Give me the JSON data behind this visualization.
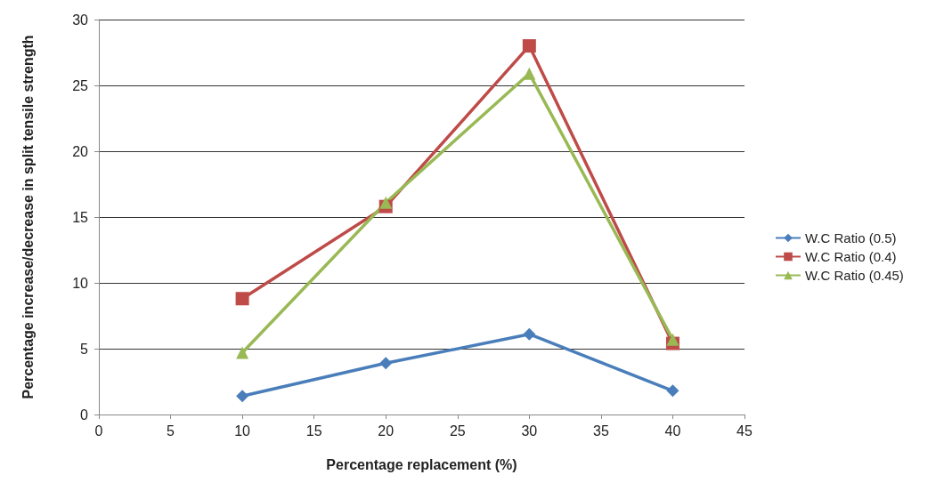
{
  "chart_data": {
    "type": "line",
    "xlabel": "Percentage replacement (%)",
    "ylabel": "Percentage increase/decrease in split tensile strength",
    "x": [
      10,
      20,
      30,
      40
    ],
    "series": [
      {
        "name": "W.C Ratio (0.5)",
        "color": "#4a7ebb",
        "marker": "diamond",
        "values": [
          1.4,
          3.9,
          6.1,
          1.8
        ]
      },
      {
        "name": "W.C Ratio (0.4)",
        "color": "#be4b48",
        "marker": "square",
        "values": [
          8.8,
          15.8,
          28,
          5.4
        ]
      },
      {
        "name": "W.C Ratio (0.45)",
        "color": "#98b954",
        "marker": "triangle",
        "values": [
          4.7,
          16.1,
          25.9,
          5.7
        ]
      }
    ],
    "xlim": [
      0,
      45
    ],
    "xticks": [
      0,
      5,
      10,
      15,
      20,
      25,
      30,
      35,
      40,
      45
    ],
    "ylim": [
      0,
      30
    ],
    "yticks": [
      0,
      5,
      10,
      15,
      20,
      25,
      30
    ],
    "grid": "y",
    "legend": "right",
    "line_style": "solid"
  }
}
